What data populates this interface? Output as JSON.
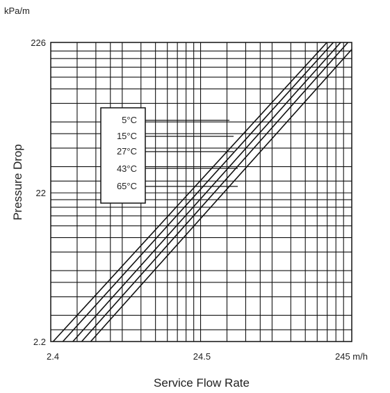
{
  "chart_data": {
    "type": "line",
    "title": "",
    "xlabel": "Service Flow Rate",
    "ylabel": "Pressure Drop",
    "y_unit": "kPa/m",
    "x_unit": "m/h",
    "x_scale": "log",
    "y_scale": "log",
    "xlim": [
      2.4,
      245
    ],
    "ylim": [
      2.2,
      226
    ],
    "grid": true,
    "x_ticks": [
      {
        "value": 2.4,
        "label": "2.4"
      },
      {
        "value": 24.5,
        "label": "24.5"
      },
      {
        "value": 245,
        "label": "245 m/h"
      }
    ],
    "y_ticks": [
      {
        "value": 2.2,
        "label": "2.2"
      },
      {
        "value": 22,
        "label": "22"
      },
      {
        "value": 226,
        "label": "226"
      }
    ],
    "legend": {
      "placement": "upper-left",
      "entries": [
        "5°C",
        "15°C",
        "27°C",
        "43°C",
        "65°C"
      ]
    },
    "series": [
      {
        "name": "5°C",
        "x": [
          2.49,
          167.4
        ],
        "y": [
          2.2,
          226
        ]
      },
      {
        "name": "15°C",
        "x": [
          2.89,
          184.6
        ],
        "y": [
          2.2,
          226
        ]
      },
      {
        "name": "27°C",
        "x": [
          3.37,
          206.6
        ],
        "y": [
          2.2,
          226
        ]
      },
      {
        "name": "43°C",
        "x": [
          3.86,
          231.1
        ],
        "y": [
          2.2,
          226
        ]
      },
      {
        "name": "65°C",
        "x": [
          4.43,
          245
        ],
        "y": [
          2.2,
          203
        ]
      }
    ]
  }
}
